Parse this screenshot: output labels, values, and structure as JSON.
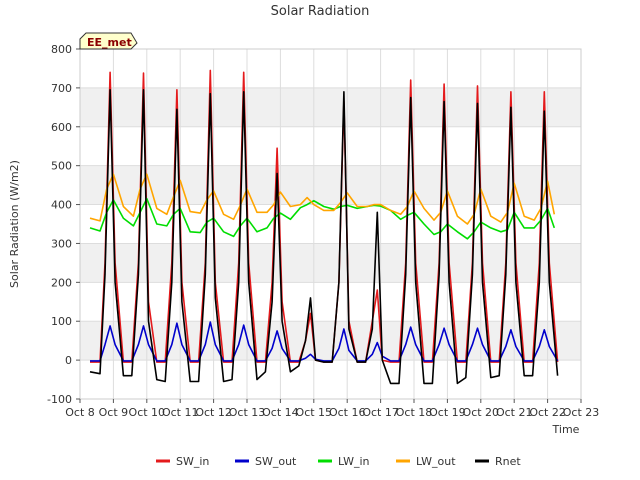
{
  "chart_data": {
    "type": "line",
    "title": "Solar Radiation",
    "xlabel": "Time",
    "ylabel": "Solar Radiation (W/m2)",
    "station_label": "EE_met",
    "ylim": [
      -100,
      800
    ],
    "yticks": [
      -100,
      0,
      100,
      200,
      300,
      400,
      500,
      600,
      700,
      800
    ],
    "xlim": [
      8,
      23
    ],
    "xticks": [
      {
        "v": 8,
        "label": "Oct 8"
      },
      {
        "v": 9,
        "label": "Oct 9"
      },
      {
        "v": 10,
        "label": "Oct 10"
      },
      {
        "v": 11,
        "label": "Oct 11"
      },
      {
        "v": 12,
        "label": "Oct 12"
      },
      {
        "v": 13,
        "label": "Oct 13"
      },
      {
        "v": 14,
        "label": "Oct 14"
      },
      {
        "v": 15,
        "label": "Oct 15"
      },
      {
        "v": 16,
        "label": "Oct 16"
      },
      {
        "v": 17,
        "label": "Oct 17"
      },
      {
        "v": 18,
        "label": "Oct 18"
      },
      {
        "v": 19,
        "label": "Oct 19"
      },
      {
        "v": 20,
        "label": "Oct 20"
      },
      {
        "v": 21,
        "label": "Oct 21"
      },
      {
        "v": 22,
        "label": "Oct 22"
      },
      {
        "v": 23,
        "label": "Oct 23"
      }
    ],
    "grid": true,
    "legend_position": "bottom",
    "series": [
      {
        "name": "SW_in",
        "color": "#e41a1c",
        "x": [
          8.3,
          8.6,
          8.75,
          8.9,
          9.05,
          9.3,
          9.55,
          9.75,
          9.9,
          10.05,
          10.3,
          10.55,
          10.75,
          10.9,
          11.05,
          11.3,
          11.55,
          11.75,
          11.9,
          12.05,
          12.3,
          12.55,
          12.75,
          12.9,
          13.05,
          13.3,
          13.55,
          13.75,
          13.9,
          14.05,
          14.3,
          14.55,
          14.75,
          14.9,
          15.05,
          15.3,
          15.55,
          15.75,
          15.9,
          16.05,
          16.3,
          16.55,
          16.75,
          16.9,
          17.05,
          17.3,
          17.55,
          17.75,
          17.9,
          18.05,
          18.3,
          18.55,
          18.75,
          18.9,
          19.05,
          19.3,
          19.55,
          19.75,
          19.9,
          20.05,
          20.3,
          20.55,
          20.75,
          20.9,
          21.05,
          21.3,
          21.55,
          21.75,
          21.9,
          22.05,
          22.3
        ],
        "y": [
          -5,
          -5,
          250,
          740,
          250,
          -5,
          -5,
          250,
          738,
          150,
          -5,
          -5,
          250,
          695,
          200,
          -5,
          -5,
          250,
          745,
          200,
          -5,
          -5,
          250,
          740,
          250,
          -5,
          -5,
          200,
          545,
          150,
          -5,
          -5,
          50,
          120,
          0,
          -5,
          -5,
          200,
          665,
          100,
          -5,
          -5,
          100,
          180,
          0,
          -5,
          -5,
          250,
          720,
          250,
          -5,
          -5,
          250,
          710,
          250,
          -5,
          -5,
          250,
          705,
          250,
          -5,
          -5,
          250,
          690,
          250,
          -5,
          -5,
          250,
          690,
          250,
          -5
        ]
      },
      {
        "name": "SW_out",
        "color": "#0000cc",
        "x": [
          8.3,
          8.6,
          8.75,
          8.9,
          9.05,
          9.3,
          9.55,
          9.75,
          9.9,
          10.05,
          10.3,
          10.55,
          10.75,
          10.9,
          11.05,
          11.3,
          11.55,
          11.75,
          11.9,
          12.05,
          12.3,
          12.55,
          12.75,
          12.9,
          13.05,
          13.3,
          13.55,
          13.75,
          13.9,
          14.05,
          14.3,
          14.55,
          14.75,
          14.9,
          15.05,
          15.3,
          15.55,
          15.75,
          15.9,
          16.05,
          16.3,
          16.55,
          16.75,
          16.9,
          17.05,
          17.3,
          17.55,
          17.75,
          17.9,
          18.05,
          18.3,
          18.55,
          18.75,
          18.9,
          19.05,
          19.3,
          19.55,
          19.75,
          19.9,
          20.05,
          20.3,
          20.55,
          20.75,
          20.9,
          21.05,
          21.3,
          21.55,
          21.75,
          21.9,
          22.05,
          22.3
        ],
        "y": [
          -2,
          -2,
          40,
          88,
          40,
          -2,
          -2,
          40,
          88,
          40,
          -2,
          -2,
          40,
          95,
          40,
          -2,
          -2,
          40,
          98,
          40,
          -2,
          -2,
          40,
          90,
          40,
          -2,
          -2,
          30,
          75,
          30,
          -2,
          -2,
          5,
          15,
          2,
          -2,
          -2,
          30,
          80,
          25,
          -2,
          -2,
          15,
          45,
          10,
          -2,
          -2,
          40,
          85,
          40,
          -2,
          -2,
          40,
          82,
          40,
          -2,
          -2,
          40,
          82,
          40,
          -2,
          -2,
          35,
          78,
          35,
          -2,
          -2,
          35,
          78,
          35,
          -2
        ]
      },
      {
        "name": "LW_in",
        "color": "#00dd00",
        "x": [
          8.3,
          8.6,
          8.8,
          9.0,
          9.3,
          9.6,
          9.8,
          10.0,
          10.3,
          10.6,
          10.8,
          11.0,
          11.3,
          11.6,
          11.8,
          12.0,
          12.3,
          12.6,
          12.8,
          13.0,
          13.3,
          13.6,
          13.8,
          14.0,
          14.3,
          14.6,
          14.8,
          15.0,
          15.3,
          15.6,
          15.8,
          16.0,
          16.3,
          16.6,
          16.8,
          17.0,
          17.3,
          17.6,
          17.8,
          18.0,
          18.3,
          18.6,
          18.8,
          19.0,
          19.3,
          19.6,
          19.8,
          20.0,
          20.3,
          20.6,
          20.8,
          21.0,
          21.3,
          21.6,
          21.8,
          22.0,
          22.2
        ],
        "y": [
          340,
          332,
          380,
          412,
          365,
          345,
          380,
          415,
          350,
          345,
          375,
          390,
          330,
          328,
          355,
          365,
          330,
          318,
          345,
          365,
          330,
          340,
          365,
          378,
          362,
          392,
          400,
          410,
          395,
          388,
          395,
          398,
          390,
          395,
          398,
          396,
          385,
          362,
          372,
          380,
          350,
          323,
          330,
          350,
          330,
          312,
          330,
          355,
          340,
          330,
          335,
          380,
          340,
          340,
          360,
          390,
          340
        ]
      },
      {
        "name": "LW_out",
        "color": "#ffa500",
        "x": [
          8.3,
          8.6,
          8.8,
          9.0,
          9.3,
          9.6,
          9.8,
          10.0,
          10.3,
          10.6,
          10.8,
          11.0,
          11.3,
          11.6,
          11.8,
          12.0,
          12.3,
          12.6,
          12.8,
          13.0,
          13.3,
          13.6,
          13.8,
          14.0,
          14.3,
          14.6,
          14.8,
          15.0,
          15.3,
          15.6,
          15.8,
          16.0,
          16.3,
          16.6,
          16.8,
          17.0,
          17.3,
          17.6,
          17.8,
          18.0,
          18.3,
          18.6,
          18.8,
          19.0,
          19.3,
          19.6,
          19.8,
          20.0,
          20.3,
          20.6,
          20.8,
          21.0,
          21.3,
          21.6,
          21.8,
          22.0,
          22.2
        ],
        "y": [
          365,
          358,
          440,
          478,
          395,
          370,
          440,
          478,
          390,
          375,
          420,
          462,
          382,
          378,
          412,
          435,
          375,
          362,
          398,
          440,
          380,
          380,
          400,
          432,
          395,
          400,
          418,
          400,
          385,
          385,
          405,
          430,
          395,
          395,
          400,
          400,
          385,
          375,
          395,
          435,
          390,
          360,
          380,
          435,
          370,
          350,
          375,
          440,
          370,
          355,
          380,
          455,
          370,
          360,
          390,
          460,
          375
        ]
      },
      {
        "name": "Rnet",
        "color": "#000000",
        "x": [
          8.3,
          8.6,
          8.75,
          8.9,
          9.05,
          9.3,
          9.55,
          9.75,
          9.9,
          10.05,
          10.3,
          10.55,
          10.75,
          10.9,
          11.05,
          11.3,
          11.55,
          11.75,
          11.9,
          12.05,
          12.3,
          12.55,
          12.75,
          12.9,
          13.05,
          13.3,
          13.55,
          13.75,
          13.9,
          14.05,
          14.3,
          14.55,
          14.75,
          14.9,
          15.05,
          15.3,
          15.55,
          15.75,
          15.9,
          16.05,
          16.3,
          16.55,
          16.75,
          16.9,
          17.05,
          17.3,
          17.55,
          17.75,
          17.9,
          18.05,
          18.3,
          18.55,
          18.75,
          18.9,
          19.05,
          19.3,
          19.55,
          19.75,
          19.9,
          20.05,
          20.3,
          20.55,
          20.75,
          20.9,
          21.05,
          21.3,
          21.55,
          21.75,
          21.9,
          22.05,
          22.3
        ],
        "y": [
          -30,
          -35,
          220,
          695,
          200,
          -40,
          -40,
          220,
          695,
          100,
          -50,
          -55,
          200,
          645,
          150,
          -55,
          -55,
          220,
          685,
          160,
          -55,
          -50,
          200,
          690,
          200,
          -50,
          -30,
          150,
          480,
          100,
          -30,
          -15,
          50,
          160,
          0,
          -5,
          -5,
          200,
          690,
          80,
          -5,
          -5,
          80,
          380,
          0,
          -60,
          -60,
          220,
          675,
          200,
          -60,
          -60,
          220,
          665,
          200,
          -60,
          -45,
          220,
          660,
          200,
          -45,
          -40,
          220,
          650,
          200,
          -40,
          -40,
          200,
          640,
          200,
          -40
        ]
      }
    ]
  }
}
